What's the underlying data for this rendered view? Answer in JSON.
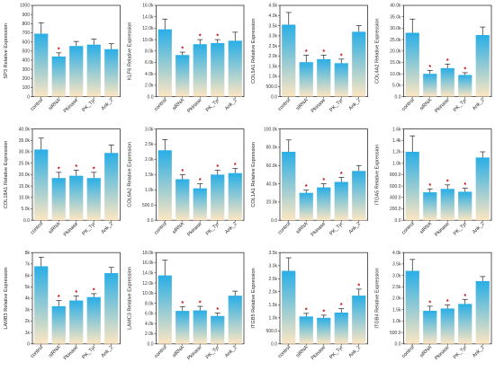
{
  "chart_data": [
    {
      "type": "bar",
      "ylabel": "SP3 Relative Expression",
      "categories": [
        "control",
        "siRNA",
        "Pkinase",
        "PK_Tyr",
        "Ank_2"
      ],
      "values": [
        690,
        440,
        555,
        570,
        520
      ],
      "errors": [
        120,
        40,
        50,
        60,
        60
      ],
      "significant": [
        false,
        true,
        false,
        false,
        false
      ],
      "ylim": [
        0,
        1000
      ],
      "ticks": [
        0,
        100,
        200,
        300,
        400,
        500,
        600,
        700,
        800,
        900,
        1000
      ],
      "tick_labels": [
        "0",
        "100",
        "200",
        "300",
        "400",
        "500",
        "600",
        "700",
        "800",
        "900",
        "1000"
      ]
    },
    {
      "type": "bar",
      "ylabel": "KLF6 Relative Expression",
      "categories": [
        "control",
        "siRNA",
        "Pkinase",
        "PK_Tyr",
        "Ank_2"
      ],
      "values": [
        11.8,
        7.3,
        9.2,
        9.4,
        9.8
      ],
      "errors": [
        1.8,
        0.5,
        0.8,
        0.6,
        1.5
      ],
      "significant": [
        false,
        true,
        true,
        true,
        false
      ],
      "ylim": [
        0,
        16
      ],
      "ticks": [
        0,
        2,
        4,
        6,
        8,
        10,
        12,
        14,
        16
      ],
      "tick_labels": [
        "0.0",
        "2.0k",
        "4.0k",
        "6.0k",
        "8.0k",
        "10.0k",
        "12.0k",
        "14.0k",
        "16.0k"
      ]
    },
    {
      "type": "bar",
      "ylabel": "COL5A1 Relative Expression",
      "categories": [
        "control",
        "siRNA",
        "Pkinase",
        "PK_Tyr",
        "Ank_2"
      ],
      "values": [
        3.55,
        1.7,
        1.85,
        1.65,
        3.2
      ],
      "errors": [
        0.6,
        0.35,
        0.2,
        0.2,
        0.3
      ],
      "significant": [
        false,
        true,
        true,
        true,
        false
      ],
      "ylim": [
        0,
        4.5
      ],
      "ticks": [
        0,
        0.5,
        1,
        1.5,
        2,
        2.5,
        3,
        3.5,
        4,
        4.5
      ],
      "tick_labels": [
        "0.0",
        "500.0",
        "1.0k",
        "1.5k",
        "2.0k",
        "2.5k",
        "3.0k",
        "3.5k",
        "4.0k",
        "4.5k"
      ]
    },
    {
      "type": "bar",
      "ylabel": "COL4A2 Relative Expression",
      "categories": [
        "control",
        "siRNA",
        "Pkinase",
        "PK_Tyr",
        "Ank_2"
      ],
      "values": [
        28,
        10,
        12.5,
        9.5,
        27
      ],
      "errors": [
        6,
        1.5,
        1.8,
        1.0,
        3.5
      ],
      "significant": [
        false,
        true,
        true,
        true,
        false
      ],
      "ylim": [
        0,
        40
      ],
      "ticks": [
        0,
        5,
        10,
        15,
        20,
        25,
        30,
        35,
        40
      ],
      "tick_labels": [
        "0.0",
        "5.0k",
        "10.0k",
        "15.0k",
        "20.0k",
        "25.0k",
        "30.0k",
        "35.0k",
        "40.0k"
      ]
    },
    {
      "type": "bar",
      "ylabel": "COL18A1 Relative Expression",
      "categories": [
        "control",
        "siRNA",
        "Pkinase",
        "PK_Tyr",
        "Ank_2"
      ],
      "values": [
        31,
        18.5,
        19.5,
        18.5,
        29.5
      ],
      "errors": [
        5,
        2.5,
        2.5,
        2.5,
        3.5
      ],
      "significant": [
        false,
        true,
        true,
        true,
        false
      ],
      "ylim": [
        0,
        40
      ],
      "ticks": [
        0,
        5,
        10,
        15,
        20,
        25,
        30,
        35,
        40
      ],
      "tick_labels": [
        "0.0",
        "5.0k",
        "10.0k",
        "15.0k",
        "20.0k",
        "25.0k",
        "30.0k",
        "35.0k",
        "40.0k"
      ]
    },
    {
      "type": "bar",
      "ylabel": "COL6A2 Relative Expression",
      "categories": [
        "control",
        "siRNA",
        "Pkinase",
        "PK_Tyr",
        "Ank_2"
      ],
      "values": [
        2.3,
        1.35,
        1.05,
        1.5,
        1.55
      ],
      "errors": [
        0.35,
        0.15,
        0.15,
        0.15,
        0.15
      ],
      "significant": [
        false,
        true,
        true,
        true,
        true
      ],
      "ylim": [
        0,
        3
      ],
      "ticks": [
        0,
        0.5,
        1,
        1.5,
        2,
        2.5,
        3
      ],
      "tick_labels": [
        "0.0",
        "500.0",
        "1.0k",
        "1.5k",
        "2.0k",
        "2.5k",
        "3.0k"
      ]
    },
    {
      "type": "bar",
      "ylabel": "COL1A1 Relative Expression",
      "categories": [
        "control",
        "siRNA",
        "Pkinase",
        "PK_Tyr",
        "Ank_2"
      ],
      "values": [
        75,
        30,
        36,
        42,
        54
      ],
      "errors": [
        13,
        3,
        4,
        5,
        6
      ],
      "significant": [
        false,
        true,
        true,
        true,
        false
      ],
      "ylim": [
        0,
        100
      ],
      "ticks": [
        0,
        20,
        40,
        60,
        80,
        100
      ],
      "tick_labels": [
        "0.0",
        "20.0k",
        "40.0k",
        "60.0k",
        "80.0k",
        "100.0k"
      ]
    },
    {
      "type": "bar",
      "ylabel": "ITGA5 Relative Expression",
      "categories": [
        "control",
        "siRNA",
        "Pkinase",
        "PK_Tyr",
        "Ank_2"
      ],
      "values": [
        1.2,
        0.49,
        0.55,
        0.5,
        1.1
      ],
      "errors": [
        0.28,
        0.06,
        0.07,
        0.06,
        0.1
      ],
      "significant": [
        false,
        true,
        true,
        true,
        false
      ],
      "ylim": [
        0,
        1.6
      ],
      "ticks": [
        0,
        0.2,
        0.4,
        0.6,
        0.8,
        1,
        1.2,
        1.4,
        1.6
      ],
      "tick_labels": [
        "0.0",
        "200.0",
        "400.0",
        "600.0",
        "800.0",
        "1.0k",
        "1.2k",
        "1.4k",
        "1.6k"
      ]
    },
    {
      "type": "bar",
      "ylabel": "LAMB3 Relative Expression",
      "categories": [
        "control",
        "siRNA",
        "Pkinase",
        "PK_Tyr",
        "Ank_2"
      ],
      "values": [
        6.8,
        3.3,
        3.8,
        4.1,
        6.2
      ],
      "errors": [
        0.8,
        0.5,
        0.4,
        0.3,
        0.5
      ],
      "significant": [
        false,
        true,
        true,
        true,
        false
      ],
      "ylim": [
        0,
        8
      ],
      "ticks": [
        0,
        1,
        2,
        3,
        4,
        5,
        6,
        7,
        8
      ],
      "tick_labels": [
        "0",
        "1k",
        "2k",
        "3k",
        "4k",
        "5k",
        "6k",
        "7k",
        "8k"
      ]
    },
    {
      "type": "bar",
      "ylabel": "LAMC3 Relative Expression",
      "categories": [
        "control",
        "siRNA",
        "Pkinase",
        "PK_Tyr",
        "Ank_2"
      ],
      "values": [
        13.5,
        6.5,
        6.6,
        5.5,
        9.5
      ],
      "errors": [
        3,
        0.8,
        0.8,
        0.6,
        0.9
      ],
      "significant": [
        false,
        true,
        true,
        true,
        false
      ],
      "ylim": [
        0,
        18
      ],
      "ticks": [
        0,
        2,
        4,
        6,
        8,
        10,
        12,
        14,
        16,
        18
      ],
      "tick_labels": [
        "0.0",
        "2.0k",
        "4.0k",
        "6.0k",
        "8.0k",
        "10.0k",
        "12.0k",
        "14.0k",
        "16.0k",
        "18.0k"
      ]
    },
    {
      "type": "bar",
      "ylabel": "ITGB5 Relative Expression",
      "categories": [
        "control",
        "siRNA",
        "Pkinase",
        "PK_Tyr",
        "Ank_2"
      ],
      "values": [
        2.8,
        1.05,
        1.0,
        1.2,
        1.85
      ],
      "errors": [
        0.5,
        0.12,
        0.1,
        0.15,
        0.25
      ],
      "significant": [
        false,
        true,
        true,
        true,
        true
      ],
      "ylim": [
        0,
        3.5
      ],
      "ticks": [
        0,
        0.5,
        1,
        1.5,
        2,
        2.5,
        3,
        3.5
      ],
      "tick_labels": [
        "0.0",
        "500.0",
        "1.0k",
        "1.5k",
        "2.0k",
        "2.5k",
        "3.0k",
        "3.5k"
      ]
    },
    {
      "type": "bar",
      "ylabel": "ITGB4 Relative Expression",
      "categories": [
        "control",
        "siRNA",
        "Pkinase",
        "PK_Tyr",
        "Ank_2"
      ],
      "values": [
        3.2,
        1.45,
        1.55,
        1.75,
        2.75
      ],
      "errors": [
        0.5,
        0.2,
        0.15,
        0.2,
        0.2
      ],
      "significant": [
        false,
        true,
        true,
        true,
        false
      ],
      "ylim": [
        0,
        4
      ],
      "ticks": [
        0,
        0.5,
        1,
        1.5,
        2,
        2.5,
        3,
        3.5,
        4
      ],
      "tick_labels": [
        "0.0",
        "500.0",
        "1.0k",
        "1.5k",
        "2.0k",
        "2.5k",
        "3.0k",
        "3.5k",
        "4.0k"
      ]
    }
  ],
  "significance_marker": "*",
  "colors": {
    "bar_top": "#29aee6",
    "bar_bottom": "#fde6c2",
    "star": "#c00000",
    "axis": "#333333"
  }
}
